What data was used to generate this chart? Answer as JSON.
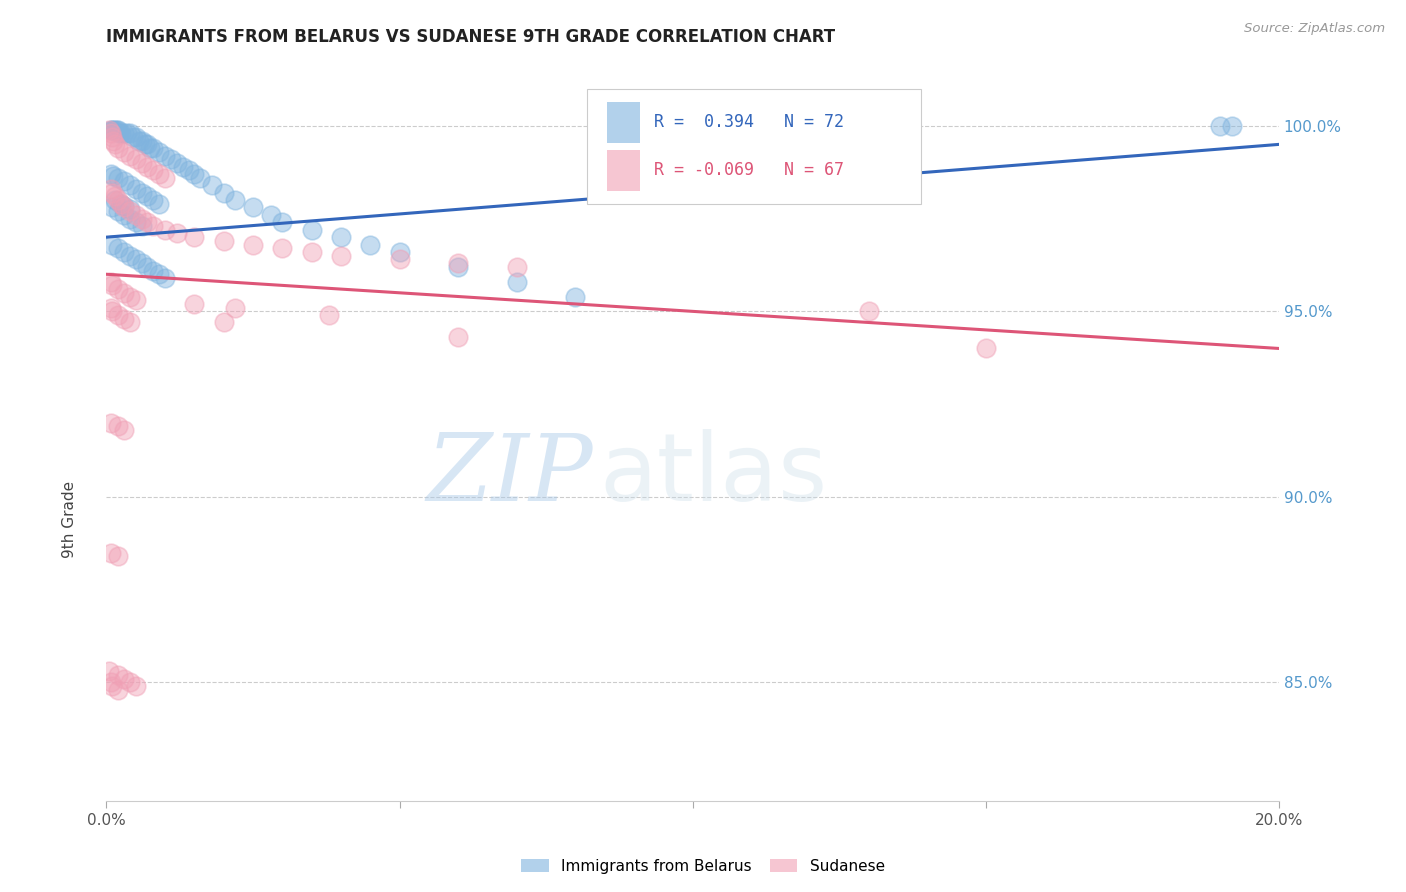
{
  "title": "IMMIGRANTS FROM BELARUS VS SUDANESE 9TH GRADE CORRELATION CHART",
  "source": "Source: ZipAtlas.com",
  "ylabel": "9th Grade",
  "xmin": 0.0,
  "xmax": 0.2,
  "ymin": 0.818,
  "ymax": 1.018,
  "legend_r_blue": "R =  0.394",
  "legend_n_blue": "N = 72",
  "legend_r_pink": "R = -0.069",
  "legend_n_pink": "N = 67",
  "blue_color": "#7fb3de",
  "pink_color": "#f0a0b5",
  "trend_blue_color": "#3366bb",
  "trend_pink_color": "#dd5577",
  "grid_color": "#cccccc",
  "background_color": "#ffffff",
  "watermark_zip": "ZIP",
  "watermark_atlas": "atlas",
  "blue_x": [
    0.0008,
    0.001,
    0.0012,
    0.0015,
    0.0018,
    0.002,
    0.0022,
    0.0025,
    0.003,
    0.0035,
    0.004,
    0.0045,
    0.005,
    0.0055,
    0.006,
    0.0065,
    0.007,
    0.0075,
    0.008,
    0.009,
    0.01,
    0.011,
    0.012,
    0.013,
    0.014,
    0.015,
    0.016,
    0.018,
    0.02,
    0.022,
    0.025,
    0.028,
    0.03,
    0.035,
    0.04,
    0.045,
    0.05,
    0.06,
    0.07,
    0.08,
    0.001,
    0.002,
    0.003,
    0.004,
    0.005,
    0.006,
    0.007,
    0.008,
    0.009,
    0.01,
    0.001,
    0.002,
    0.003,
    0.004,
    0.005,
    0.006,
    0.0015,
    0.0025,
    0.003,
    0.004,
    0.0008,
    0.0012,
    0.002,
    0.003,
    0.004,
    0.005,
    0.006,
    0.007,
    0.008,
    0.009,
    0.19,
    0.192
  ],
  "blue_y": [
    0.999,
    0.999,
    0.999,
    0.999,
    0.999,
    0.999,
    0.998,
    0.998,
    0.998,
    0.998,
    0.998,
    0.997,
    0.997,
    0.996,
    0.996,
    0.995,
    0.995,
    0.994,
    0.994,
    0.993,
    0.992,
    0.991,
    0.99,
    0.989,
    0.988,
    0.987,
    0.986,
    0.984,
    0.982,
    0.98,
    0.978,
    0.976,
    0.974,
    0.972,
    0.97,
    0.968,
    0.966,
    0.962,
    0.958,
    0.954,
    0.968,
    0.967,
    0.966,
    0.965,
    0.964,
    0.963,
    0.962,
    0.961,
    0.96,
    0.959,
    0.978,
    0.977,
    0.976,
    0.975,
    0.974,
    0.973,
    0.98,
    0.979,
    0.9785,
    0.9775,
    0.987,
    0.9865,
    0.986,
    0.985,
    0.984,
    0.983,
    0.982,
    0.981,
    0.98,
    0.979,
    1.0,
    1.0
  ],
  "pink_x": [
    0.0005,
    0.0008,
    0.001,
    0.0012,
    0.0015,
    0.002,
    0.003,
    0.004,
    0.005,
    0.006,
    0.007,
    0.008,
    0.009,
    0.01,
    0.0008,
    0.001,
    0.0015,
    0.002,
    0.0025,
    0.003,
    0.004,
    0.005,
    0.006,
    0.007,
    0.008,
    0.01,
    0.012,
    0.015,
    0.02,
    0.025,
    0.03,
    0.035,
    0.04,
    0.05,
    0.06,
    0.07,
    0.0008,
    0.001,
    0.002,
    0.003,
    0.004,
    0.005,
    0.0008,
    0.001,
    0.002,
    0.003,
    0.004,
    0.015,
    0.022,
    0.13,
    0.038,
    0.0008,
    0.002,
    0.003,
    0.02,
    0.06,
    0.15,
    0.0008,
    0.002,
    0.0008,
    0.001,
    0.002,
    0.0005,
    0.002,
    0.003,
    0.004,
    0.005
  ],
  "pink_y": [
    0.999,
    0.998,
    0.997,
    0.996,
    0.995,
    0.994,
    0.993,
    0.992,
    0.991,
    0.99,
    0.989,
    0.988,
    0.987,
    0.986,
    0.983,
    0.982,
    0.981,
    0.98,
    0.979,
    0.978,
    0.977,
    0.976,
    0.975,
    0.974,
    0.973,
    0.972,
    0.971,
    0.97,
    0.969,
    0.968,
    0.967,
    0.966,
    0.965,
    0.964,
    0.963,
    0.962,
    0.958,
    0.957,
    0.956,
    0.955,
    0.954,
    0.953,
    0.951,
    0.95,
    0.949,
    0.948,
    0.947,
    0.952,
    0.951,
    0.95,
    0.949,
    0.92,
    0.919,
    0.918,
    0.947,
    0.943,
    0.94,
    0.885,
    0.884,
    0.85,
    0.849,
    0.848,
    0.853,
    0.852,
    0.851,
    0.85,
    0.849
  ],
  "blue_trend_x": [
    0.0,
    0.2
  ],
  "blue_trend_y": [
    0.97,
    0.995
  ],
  "pink_trend_x": [
    0.0,
    0.2
  ],
  "pink_trend_y": [
    0.96,
    0.94
  ]
}
